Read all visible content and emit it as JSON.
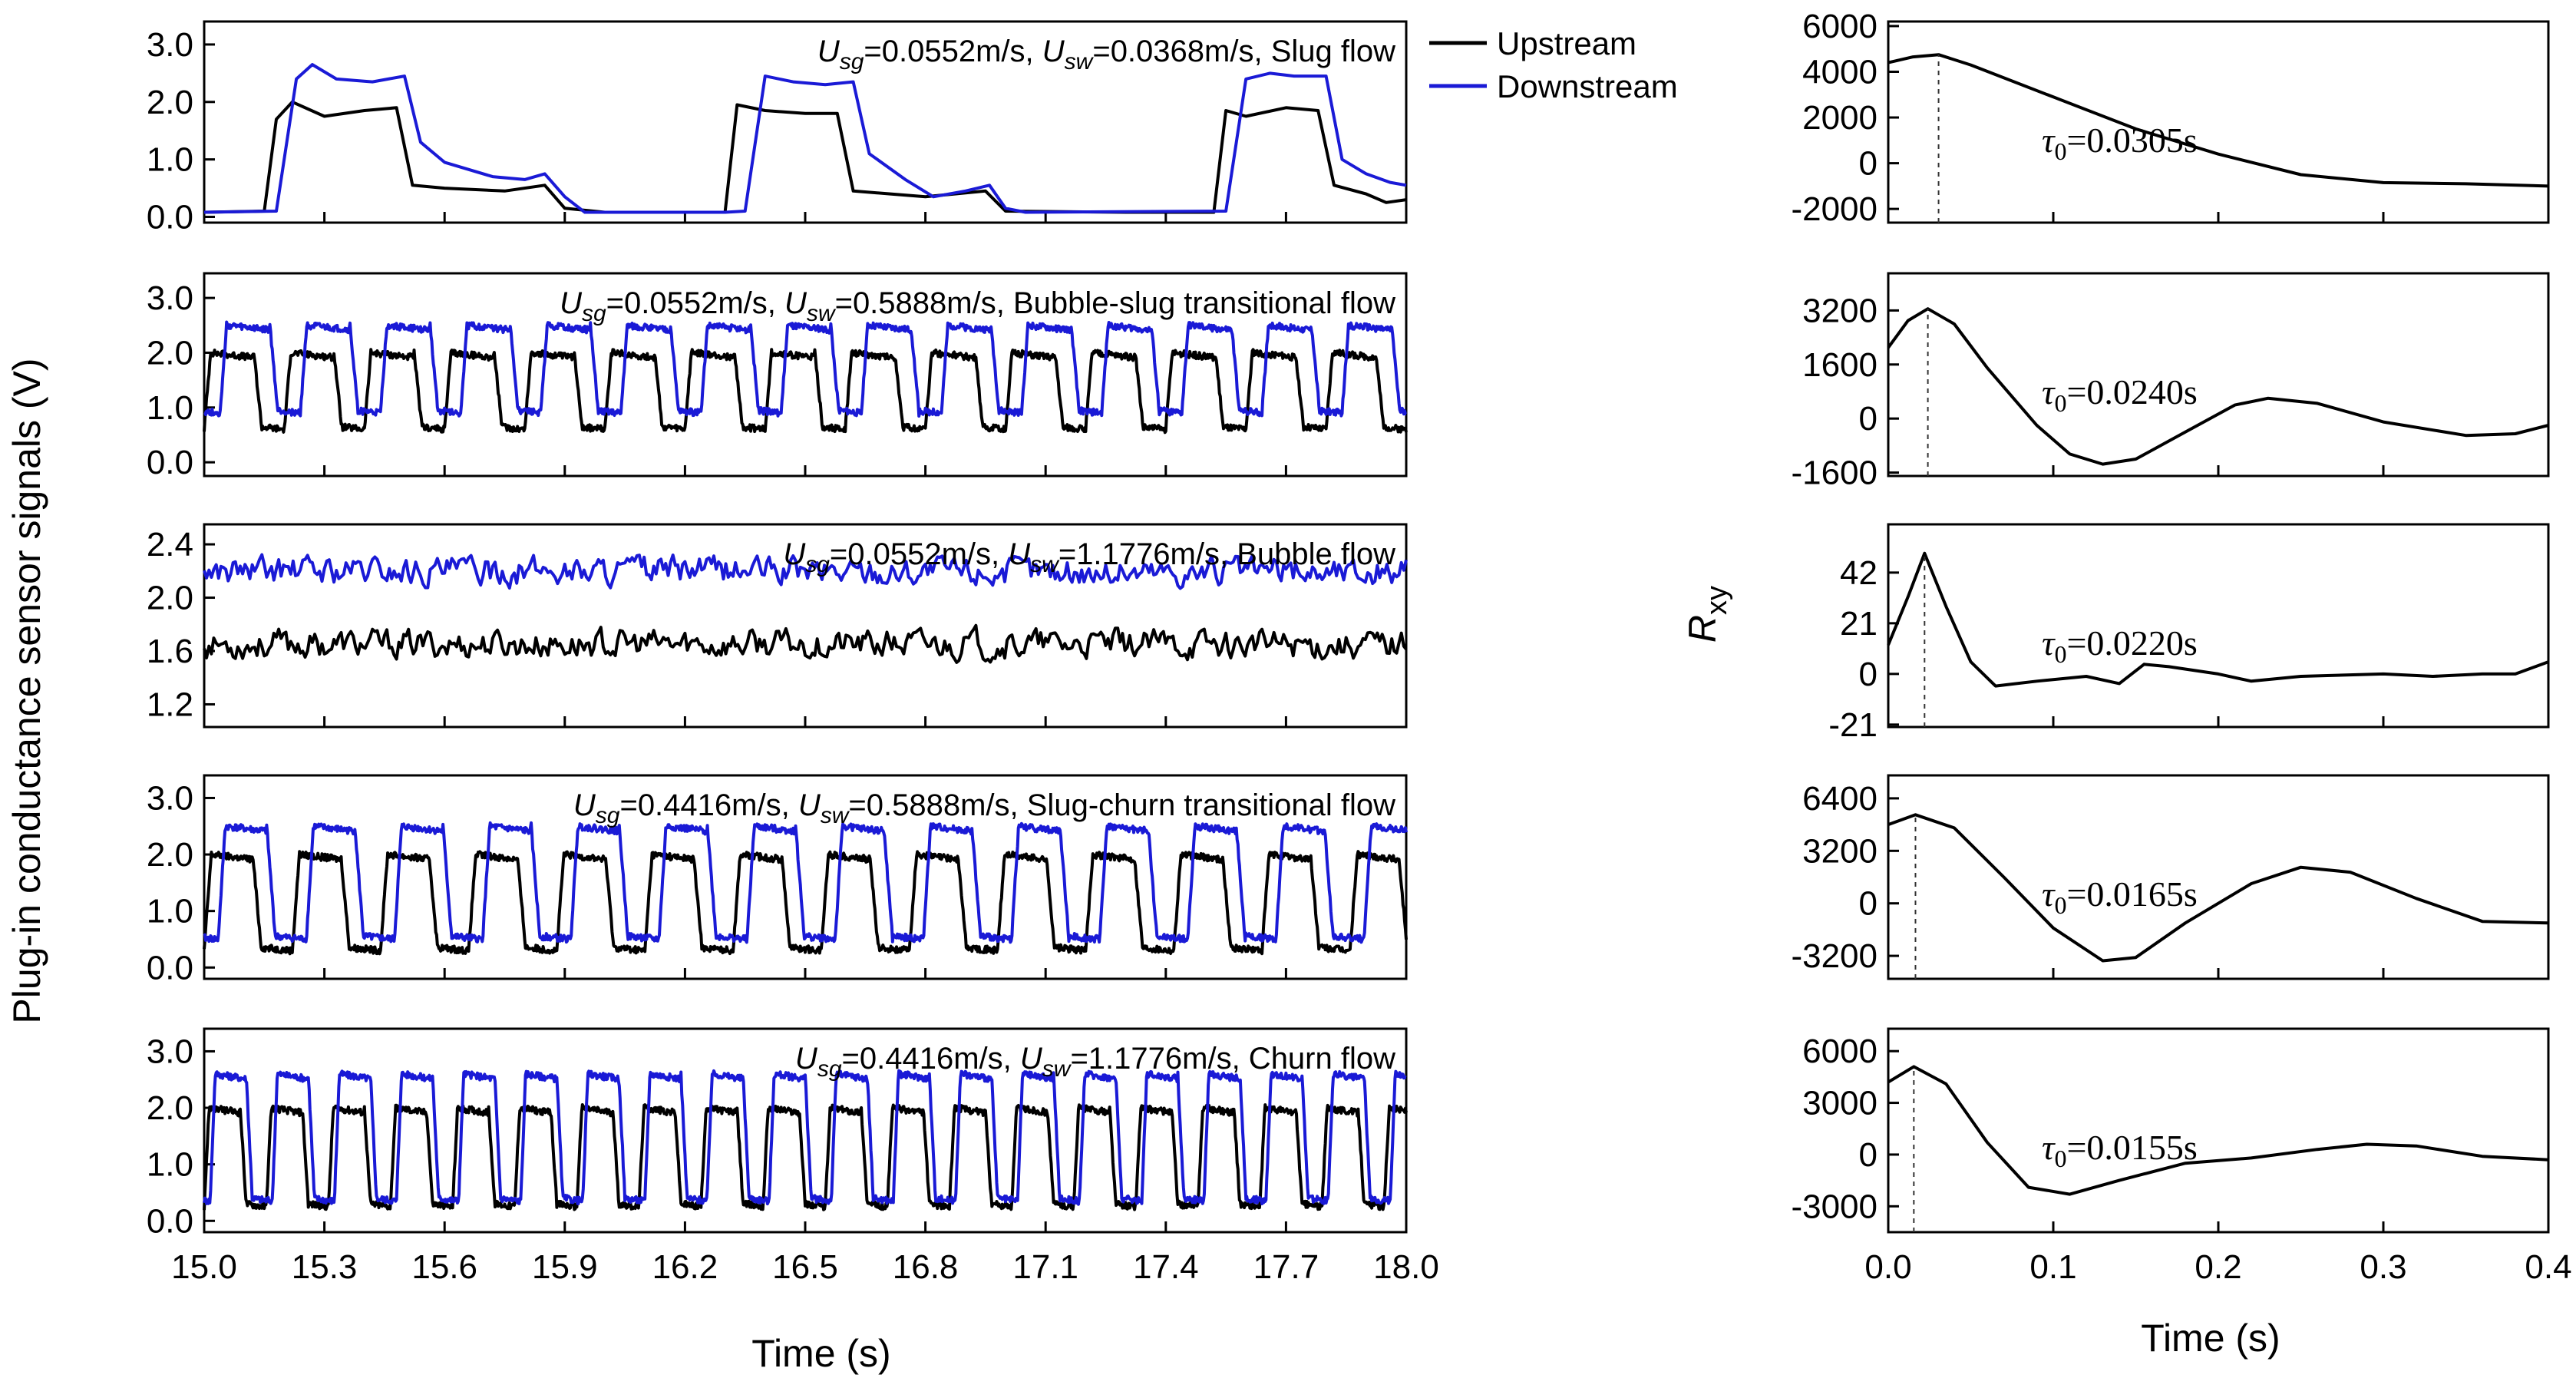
{
  "figure": {
    "left_ylabel": "Plug-in  conductance  sensor  signals (V)",
    "left_xlabel": "Time (s)",
    "right_ylabel_main": "R",
    "right_ylabel_sub": "xy",
    "right_xlabel": "Time (s)",
    "legend": [
      {
        "label": "Upstream",
        "color": "#000000"
      },
      {
        "label": "Downstream",
        "color": "#1a1ad6"
      }
    ]
  },
  "chart_data": [
    {
      "type": "line",
      "panel": "signal-1",
      "title": "Slug flow",
      "annotation": {
        "p1": "U",
        "s1": "sg",
        "t1": "=0.0552m/s, ",
        "p2": "U",
        "s2": "sw",
        "t2": "=0.0368m/s, Slug flow"
      },
      "xlim": [
        15.0,
        18.0
      ],
      "ylim": [
        -0.1,
        3.4
      ],
      "yticks": [
        "0.0",
        "1.0",
        "2.0",
        "3.0"
      ],
      "ytick_values": [
        0,
        1,
        2,
        3
      ],
      "series": [
        {
          "name": "Upstream",
          "color": "#000000",
          "points": [
            [
              15.0,
              0.08
            ],
            [
              15.15,
              0.1
            ],
            [
              15.18,
              1.7
            ],
            [
              15.22,
              2.0
            ],
            [
              15.3,
              1.75
            ],
            [
              15.4,
              1.85
            ],
            [
              15.48,
              1.9
            ],
            [
              15.52,
              0.55
            ],
            [
              15.6,
              0.5
            ],
            [
              15.75,
              0.45
            ],
            [
              15.85,
              0.55
            ],
            [
              15.9,
              0.15
            ],
            [
              16.0,
              0.08
            ],
            [
              16.3,
              0.08
            ],
            [
              16.33,
              1.95
            ],
            [
              16.4,
              1.85
            ],
            [
              16.5,
              1.8
            ],
            [
              16.58,
              1.8
            ],
            [
              16.62,
              0.45
            ],
            [
              16.8,
              0.35
            ],
            [
              16.95,
              0.45
            ],
            [
              17.0,
              0.1
            ],
            [
              17.3,
              0.08
            ],
            [
              17.52,
              0.08
            ],
            [
              17.55,
              1.85
            ],
            [
              17.6,
              1.75
            ],
            [
              17.7,
              1.9
            ],
            [
              17.78,
              1.85
            ],
            [
              17.82,
              0.55
            ],
            [
              17.9,
              0.4
            ],
            [
              17.95,
              0.25
            ],
            [
              18.0,
              0.3
            ]
          ]
        },
        {
          "name": "Downstream",
          "color": "#1a1ad6",
          "points": [
            [
              15.0,
              0.08
            ],
            [
              15.18,
              0.1
            ],
            [
              15.23,
              2.4
            ],
            [
              15.27,
              2.65
            ],
            [
              15.33,
              2.4
            ],
            [
              15.42,
              2.35
            ],
            [
              15.5,
              2.45
            ],
            [
              15.54,
              1.3
            ],
            [
              15.6,
              0.95
            ],
            [
              15.72,
              0.7
            ],
            [
              15.8,
              0.65
            ],
            [
              15.85,
              0.75
            ],
            [
              15.9,
              0.35
            ],
            [
              15.95,
              0.08
            ],
            [
              16.3,
              0.08
            ],
            [
              16.35,
              0.1
            ],
            [
              16.4,
              2.45
            ],
            [
              16.47,
              2.35
            ],
            [
              16.55,
              2.3
            ],
            [
              16.62,
              2.35
            ],
            [
              16.66,
              1.1
            ],
            [
              16.75,
              0.65
            ],
            [
              16.82,
              0.35
            ],
            [
              16.9,
              0.45
            ],
            [
              16.96,
              0.55
            ],
            [
              17.0,
              0.15
            ],
            [
              17.05,
              0.08
            ],
            [
              17.55,
              0.1
            ],
            [
              17.6,
              2.4
            ],
            [
              17.66,
              2.5
            ],
            [
              17.72,
              2.45
            ],
            [
              17.8,
              2.45
            ],
            [
              17.84,
              1.0
            ],
            [
              17.9,
              0.75
            ],
            [
              17.96,
              0.6
            ],
            [
              18.0,
              0.55
            ]
          ]
        }
      ]
    },
    {
      "type": "line",
      "panel": "signal-2",
      "title": "Bubble-slug transitional flow",
      "annotation": {
        "p1": "U",
        "s1": "sg",
        "t1": "=0.0552m/s, ",
        "p2": "U",
        "s2": "sw",
        "t2": "=0.5888m/s, Bubble-slug transitional flow"
      },
      "xlim": [
        15.0,
        18.0
      ],
      "ylim": [
        -0.25,
        3.45
      ],
      "yticks": [
        "0.0",
        "1.0",
        "2.0",
        "3.0"
      ],
      "ytick_values": [
        0,
        1,
        2,
        3
      ],
      "series": [
        {
          "name": "Upstream",
          "color": "#000000",
          "period": 0.2,
          "low": 0.6,
          "high": 2.0,
          "duty": 0.62
        },
        {
          "name": "Downstream",
          "color": "#1a1ad6",
          "period": 0.2,
          "low": 0.9,
          "high": 2.5,
          "duty": 0.62,
          "shift": 0.04
        }
      ]
    },
    {
      "type": "line",
      "panel": "signal-3",
      "title": "Bubble flow",
      "annotation": {
        "p1": "U",
        "s1": "sg",
        "t1": "=0.0552m/s, ",
        "p2": "U",
        "s2": "sw",
        "t2": "=1.1776m/s, Bubble flow"
      },
      "xlim": [
        15.0,
        18.0
      ],
      "ylim": [
        1.03,
        2.55
      ],
      "yticks": [
        "1.2",
        "1.6",
        "2.0",
        "2.4"
      ],
      "ytick_values": [
        1.2,
        1.6,
        2.0,
        2.4
      ],
      "series": [
        {
          "name": "Upstream",
          "color": "#000000",
          "mean": 1.65,
          "noise": 0.08
        },
        {
          "name": "Downstream",
          "color": "#1a1ad6",
          "mean": 2.2,
          "noise": 0.08
        }
      ]
    },
    {
      "type": "line",
      "panel": "signal-4",
      "title": "Slug-churn transitional flow",
      "annotation": {
        "p1": "U",
        "s1": "sg",
        "t1": "=0.4416m/s, ",
        "p2": "U",
        "s2": "sw",
        "t2": "=0.5888m/s, Slug-churn transitional flow"
      },
      "xlim": [
        15.0,
        18.0
      ],
      "ylim": [
        -0.2,
        3.4
      ],
      "yticks": [
        "0.0",
        "1.0",
        "2.0",
        "3.0"
      ],
      "ytick_values": [
        0,
        1,
        2,
        3
      ],
      "series": [
        {
          "name": "Upstream",
          "color": "#000000",
          "period": 0.22,
          "low": 0.3,
          "high": 2.0,
          "duty": 0.55
        },
        {
          "name": "Downstream",
          "color": "#1a1ad6",
          "period": 0.22,
          "low": 0.5,
          "high": 2.5,
          "duty": 0.55,
          "shift": 0.035
        }
      ]
    },
    {
      "type": "line",
      "panel": "signal-5",
      "title": "Churn flow",
      "annotation": {
        "p1": "U",
        "s1": "sg",
        "t1": "=0.4416m/s, ",
        "p2": "U",
        "s2": "sw",
        "t2": "=1.1776m/s, Churn flow"
      },
      "xlim": [
        15.0,
        18.0
      ],
      "ylim": [
        -0.2,
        3.4
      ],
      "yticks": [
        "0.0",
        "1.0",
        "2.0",
        "3.0"
      ],
      "ytick_values": [
        0,
        1,
        2,
        3
      ],
      "xticks": [
        "15.0",
        "15.3",
        "15.6",
        "15.9",
        "16.2",
        "16.5",
        "16.8",
        "17.1",
        "17.4",
        "17.7",
        "18.0"
      ],
      "xtick_values": [
        15.0,
        15.3,
        15.6,
        15.9,
        16.2,
        16.5,
        16.8,
        17.1,
        17.4,
        17.7,
        18.0
      ],
      "series": [
        {
          "name": "Upstream",
          "color": "#000000",
          "period": 0.155,
          "low": 0.25,
          "high": 2.0,
          "duty": 0.58
        },
        {
          "name": "Downstream",
          "color": "#1a1ad6",
          "period": 0.155,
          "low": 0.35,
          "high": 2.6,
          "duty": 0.58,
          "shift": 0.015
        }
      ]
    },
    {
      "type": "line",
      "panel": "corr-1",
      "tau_label": "=0.0305s",
      "tau": 0.0305,
      "xlim": [
        0.0,
        0.4
      ],
      "ylim": [
        -2600,
        6200
      ],
      "yticks": [
        "6000",
        "4000",
        "2000",
        "0",
        "-2000"
      ],
      "ytick_values": [
        6000,
        4000,
        2000,
        0,
        -2000
      ],
      "series": [
        {
          "name": "Rxy",
          "color": "#000000",
          "points": [
            [
              0,
              4400
            ],
            [
              0.015,
              4650
            ],
            [
              0.0305,
              4750
            ],
            [
              0.05,
              4300
            ],
            [
              0.1,
              2900
            ],
            [
              0.15,
              1500
            ],
            [
              0.2,
              400
            ],
            [
              0.25,
              -500
            ],
            [
              0.3,
              -850
            ],
            [
              0.35,
              -900
            ],
            [
              0.4,
              -1000
            ]
          ]
        }
      ]
    },
    {
      "type": "line",
      "panel": "corr-2",
      "tau_label": "=0.0240s",
      "tau": 0.024,
      "xlim": [
        0.0,
        0.4
      ],
      "ylim": [
        -1700,
        4300
      ],
      "yticks": [
        "3200",
        "1600",
        "0",
        "-1600"
      ],
      "ytick_values": [
        3200,
        1600,
        0,
        -1600
      ],
      "series": [
        {
          "name": "Rxy",
          "color": "#000000",
          "points": [
            [
              0,
              2100
            ],
            [
              0.012,
              2900
            ],
            [
              0.024,
              3250
            ],
            [
              0.04,
              2800
            ],
            [
              0.06,
              1500
            ],
            [
              0.09,
              -200
            ],
            [
              0.11,
              -1050
            ],
            [
              0.13,
              -1350
            ],
            [
              0.15,
              -1200
            ],
            [
              0.18,
              -400
            ],
            [
              0.21,
              400
            ],
            [
              0.23,
              600
            ],
            [
              0.26,
              450
            ],
            [
              0.3,
              -100
            ],
            [
              0.35,
              -500
            ],
            [
              0.38,
              -450
            ],
            [
              0.4,
              -200
            ]
          ]
        }
      ]
    },
    {
      "type": "line",
      "panel": "corr-3",
      "tau_label": "=0.0220s",
      "tau": 0.022,
      "xlim": [
        0.0,
        0.4
      ],
      "ylim": [
        -22,
        62
      ],
      "yticks": [
        "42",
        "21",
        "0",
        "-21"
      ],
      "ytick_values": [
        42,
        21,
        0,
        -21
      ],
      "series": [
        {
          "name": "Rxy",
          "color": "#000000",
          "points": [
            [
              0,
              12
            ],
            [
              0.012,
              32
            ],
            [
              0.022,
              50
            ],
            [
              0.035,
              28
            ],
            [
              0.05,
              5
            ],
            [
              0.065,
              -5
            ],
            [
              0.09,
              -3
            ],
            [
              0.12,
              -1
            ],
            [
              0.14,
              -4
            ],
            [
              0.155,
              4
            ],
            [
              0.17,
              3
            ],
            [
              0.2,
              0
            ],
            [
              0.22,
              -3
            ],
            [
              0.25,
              -1
            ],
            [
              0.3,
              0
            ],
            [
              0.33,
              -1
            ],
            [
              0.36,
              0
            ],
            [
              0.38,
              0
            ],
            [
              0.4,
              5
            ]
          ]
        }
      ]
    },
    {
      "type": "line",
      "panel": "corr-4",
      "tau_label": "=0.0165s",
      "tau": 0.0165,
      "xlim": [
        0.0,
        0.4
      ],
      "ylim": [
        -4600,
        7800
      ],
      "yticks": [
        "6400",
        "3200",
        "0",
        "-3200"
      ],
      "ytick_values": [
        6400,
        3200,
        0,
        -3200
      ],
      "series": [
        {
          "name": "Rxy",
          "color": "#000000",
          "points": [
            [
              0,
              4800
            ],
            [
              0.0165,
              5400
            ],
            [
              0.04,
              4600
            ],
            [
              0.07,
              1600
            ],
            [
              0.1,
              -1500
            ],
            [
              0.13,
              -3500
            ],
            [
              0.15,
              -3300
            ],
            [
              0.18,
              -1200
            ],
            [
              0.22,
              1200
            ],
            [
              0.25,
              2200
            ],
            [
              0.28,
              1900
            ],
            [
              0.32,
              300
            ],
            [
              0.36,
              -1100
            ],
            [
              0.4,
              -1200
            ]
          ]
        }
      ]
    },
    {
      "type": "line",
      "panel": "corr-5",
      "tau_label": "=0.0155s",
      "tau": 0.0155,
      "xlim": [
        0.0,
        0.4
      ],
      "ylim": [
        -4500,
        7300
      ],
      "yticks": [
        "6000",
        "3000",
        "0",
        "-3000"
      ],
      "ytick_values": [
        6000,
        3000,
        0,
        -3000
      ],
      "xticks": [
        "0.0",
        "0.1",
        "0.2",
        "0.3",
        "0.4"
      ],
      "xtick_values": [
        0.0,
        0.1,
        0.2,
        0.3,
        0.4
      ],
      "series": [
        {
          "name": "Rxy",
          "color": "#000000",
          "points": [
            [
              0,
              4200
            ],
            [
              0.0155,
              5100
            ],
            [
              0.035,
              4100
            ],
            [
              0.06,
              700
            ],
            [
              0.085,
              -1900
            ],
            [
              0.11,
              -2300
            ],
            [
              0.14,
              -1500
            ],
            [
              0.18,
              -500
            ],
            [
              0.22,
              -200
            ],
            [
              0.26,
              300
            ],
            [
              0.29,
              600
            ],
            [
              0.32,
              500
            ],
            [
              0.36,
              -100
            ],
            [
              0.4,
              -300
            ]
          ]
        }
      ]
    }
  ]
}
